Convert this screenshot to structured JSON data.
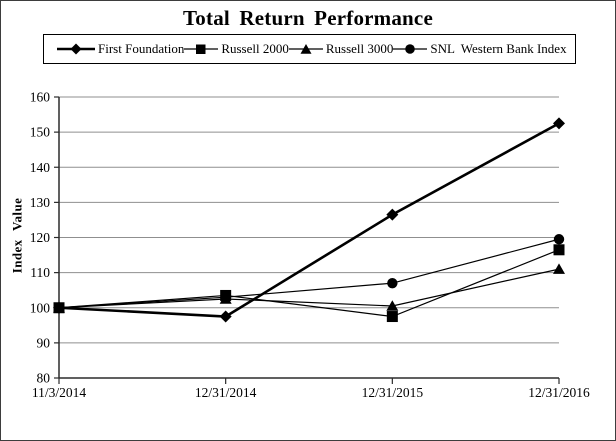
{
  "window": {
    "background": "#ffffff",
    "border_color": "#3d3d3d"
  },
  "chart_data": {
    "type": "line",
    "title": "Total Return Performance",
    "xlabel": "",
    "ylabel": "Index Value",
    "categories": [
      "11/3/2014",
      "12/31/2014",
      "12/31/2015",
      "12/31/2016"
    ],
    "series": [
      {
        "name": "First Foundation",
        "marker": "diamond",
        "line_width": 2.6,
        "values": [
          100,
          97.5,
          126.5,
          152.5
        ]
      },
      {
        "name": "Russell 2000",
        "marker": "square",
        "line_width": 1.2,
        "values": [
          100,
          103.5,
          97.5,
          116.5
        ]
      },
      {
        "name": "Russell 3000",
        "marker": "triangle",
        "line_width": 1.2,
        "values": [
          100,
          102.5,
          100.5,
          111
        ]
      },
      {
        "name": "SNL  Western Bank Index",
        "marker": "circle",
        "line_width": 1.2,
        "values": [
          100,
          103,
          107,
          119.5
        ]
      }
    ],
    "y_axis": {
      "min": 80,
      "max": 160,
      "step": 10
    },
    "grid": true,
    "legend_position": "top",
    "series_color": "#000000",
    "gridline_color": "#8f8f8f",
    "axis_color": "#2b2b2b"
  }
}
